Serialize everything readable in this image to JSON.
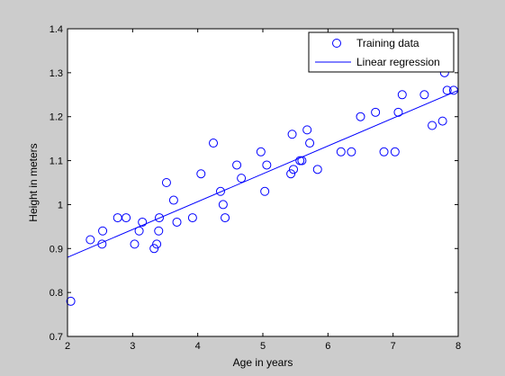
{
  "chart_data": {
    "type": "scatter",
    "title": "",
    "xlabel": "Age in years",
    "ylabel": "Height in meters",
    "xlim": [
      2,
      8
    ],
    "ylim": [
      0.7,
      1.4
    ],
    "grid": false,
    "legend_position": "top-right",
    "x_ticks": [
      "2",
      "3",
      "4",
      "5",
      "6",
      "7",
      "8"
    ],
    "y_ticks": [
      "0.7",
      "0.8",
      "0.9",
      "1",
      "1.1",
      "1.2",
      "1.3",
      "1.4"
    ],
    "x_tick_values": [
      2,
      3,
      4,
      5,
      6,
      7,
      8
    ],
    "y_tick_values": [
      0.7,
      0.8,
      0.9,
      1.0,
      1.1,
      1.2,
      1.3,
      1.4
    ],
    "series": [
      {
        "name": "Training data",
        "kind": "markers",
        "marker": "circle",
        "color": "#0000ff",
        "points": [
          [
            2.05,
            0.78
          ],
          [
            2.35,
            0.92
          ],
          [
            2.53,
            0.91
          ],
          [
            2.54,
            0.94
          ],
          [
            2.77,
            0.97
          ],
          [
            2.9,
            0.97
          ],
          [
            3.03,
            0.91
          ],
          [
            3.1,
            0.94
          ],
          [
            3.15,
            0.96
          ],
          [
            3.33,
            0.9
          ],
          [
            3.37,
            0.91
          ],
          [
            3.4,
            0.94
          ],
          [
            3.41,
            0.97
          ],
          [
            3.52,
            1.05
          ],
          [
            3.63,
            1.01
          ],
          [
            3.68,
            0.96
          ],
          [
            3.92,
            0.97
          ],
          [
            4.05,
            1.07
          ],
          [
            4.24,
            1.14
          ],
          [
            4.35,
            1.03
          ],
          [
            4.39,
            1.0
          ],
          [
            4.42,
            0.97
          ],
          [
            4.6,
            1.09
          ],
          [
            4.67,
            1.06
          ],
          [
            4.97,
            1.12
          ],
          [
            5.03,
            1.03
          ],
          [
            5.06,
            1.09
          ],
          [
            5.43,
            1.07
          ],
          [
            5.45,
            1.16
          ],
          [
            5.47,
            1.08
          ],
          [
            5.57,
            1.1
          ],
          [
            5.6,
            1.1
          ],
          [
            5.68,
            1.17
          ],
          [
            5.72,
            1.14
          ],
          [
            5.84,
            1.08
          ],
          [
            6.2,
            1.12
          ],
          [
            6.36,
            1.12
          ],
          [
            6.5,
            1.2
          ],
          [
            6.73,
            1.21
          ],
          [
            6.86,
            1.12
          ],
          [
            7.03,
            1.12
          ],
          [
            7.08,
            1.21
          ],
          [
            7.14,
            1.25
          ],
          [
            7.48,
            1.25
          ],
          [
            7.6,
            1.18
          ],
          [
            7.76,
            1.19
          ],
          [
            7.79,
            1.3
          ],
          [
            7.83,
            1.26
          ],
          [
            7.93,
            1.26
          ]
        ]
      },
      {
        "name": "Linear regression",
        "kind": "line",
        "color": "#0000ff",
        "x": [
          2,
          8
        ],
        "y": [
          0.88,
          1.26
        ]
      }
    ]
  },
  "colors": {
    "figure_background": "#cccccc",
    "axes_background": "#ffffff",
    "axes_color": "#000000",
    "series_color": "#0000ff"
  }
}
